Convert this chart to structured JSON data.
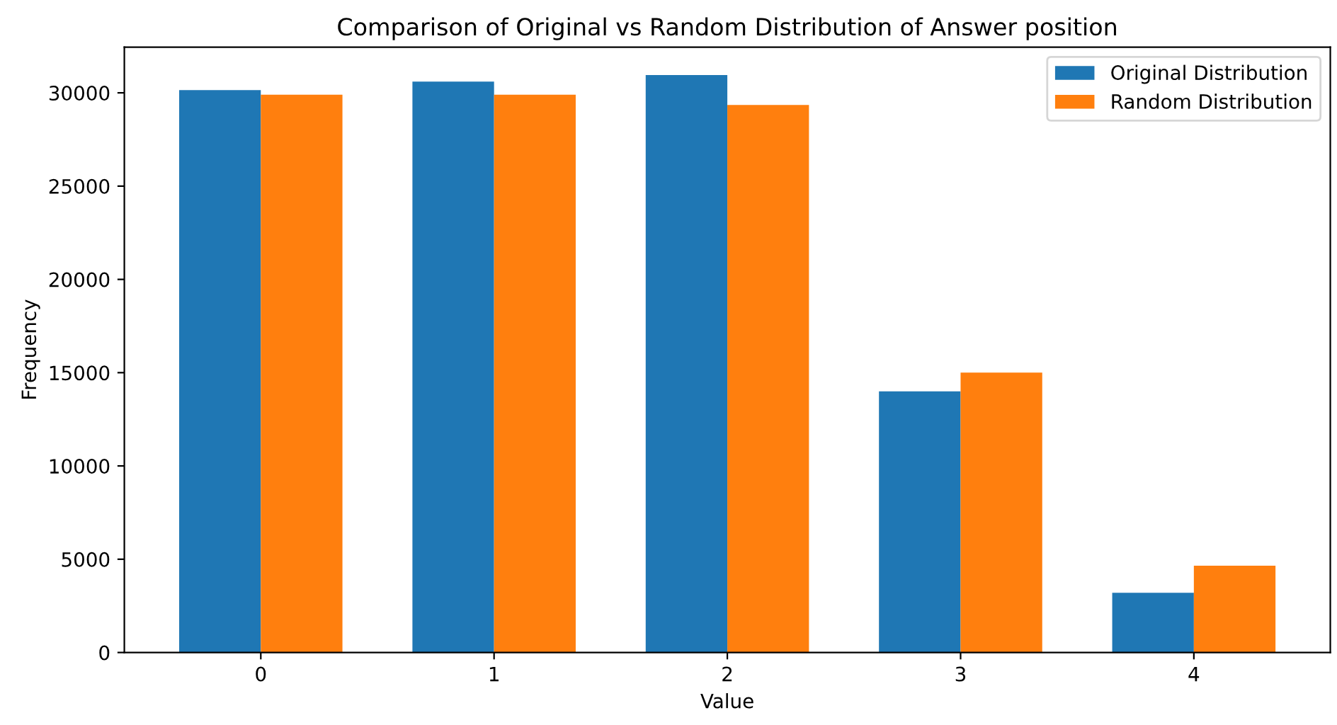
{
  "chart_data": {
    "type": "bar",
    "title": "Comparison of Original vs Random Distribution of Answer position",
    "xlabel": "Value",
    "ylabel": "Frequency",
    "categories": [
      "0",
      "1",
      "2",
      "3",
      "4"
    ],
    "series": [
      {
        "name": "Original Distribution",
        "color": "#1f77b4",
        "values": [
          30150,
          30600,
          30950,
          14000,
          3200
        ]
      },
      {
        "name": "Random Distribution",
        "color": "#ff7f0e",
        "values": [
          29900,
          29900,
          29350,
          15000,
          4650
        ]
      }
    ],
    "ylim": [
      0,
      32450
    ],
    "yticks": [
      0,
      5000,
      10000,
      15000,
      20000,
      25000,
      30000
    ],
    "grid": false,
    "legend": "top right"
  }
}
